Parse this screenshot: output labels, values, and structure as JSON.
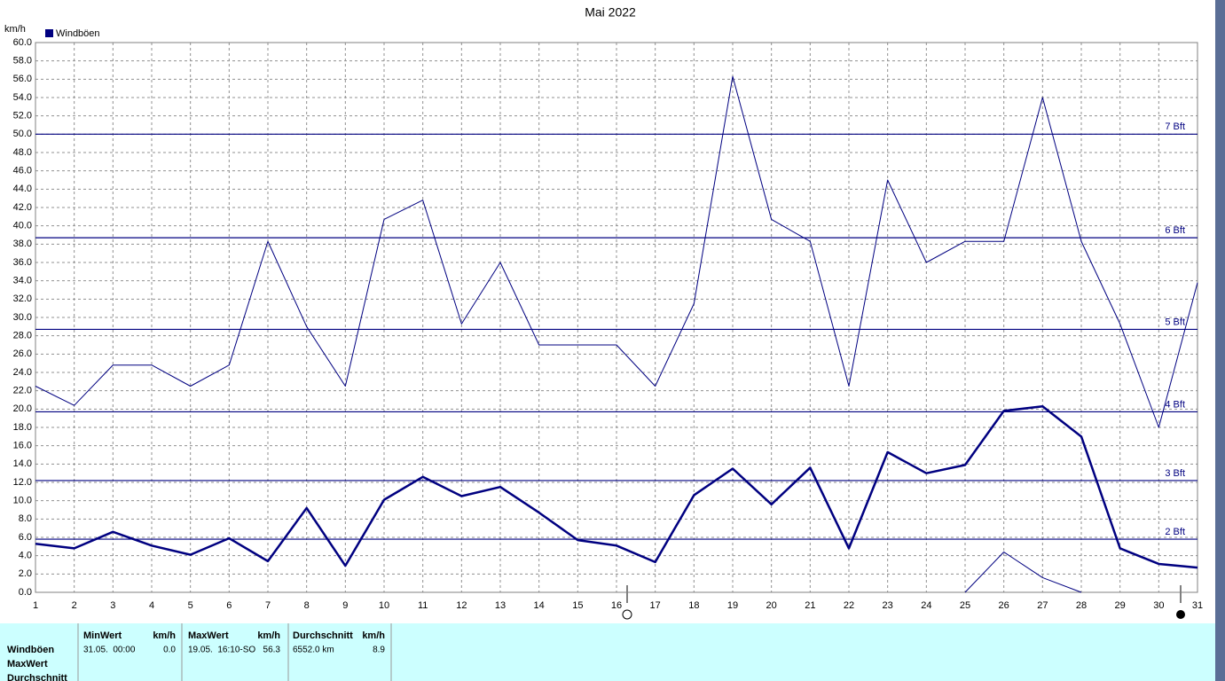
{
  "chart_data": {
    "type": "line",
    "title": "Mai 2022",
    "y_label": "km/h",
    "legend": {
      "label": "Windböen",
      "color": "#000080"
    },
    "x": [
      1,
      2,
      3,
      4,
      5,
      6,
      7,
      8,
      9,
      10,
      11,
      12,
      13,
      14,
      15,
      16,
      17,
      18,
      19,
      20,
      21,
      22,
      23,
      24,
      25,
      26,
      27,
      28,
      29,
      30,
      31
    ],
    "xlim": [
      1,
      31
    ],
    "xticks": [
      1,
      2,
      3,
      4,
      5,
      6,
      7,
      8,
      9,
      10,
      11,
      12,
      13,
      14,
      15,
      16,
      17,
      18,
      19,
      20,
      21,
      22,
      23,
      24,
      25,
      26,
      27,
      28,
      29,
      30,
      31
    ],
    "ylim": [
      0,
      60
    ],
    "yticks": [
      {
        "value": 0,
        "label": "0.0"
      },
      {
        "value": 2,
        "label": "2.0"
      },
      {
        "value": 4,
        "label": "4.0"
      },
      {
        "value": 6,
        "label": "6.0"
      },
      {
        "value": 8,
        "label": "8.0"
      },
      {
        "value": 10,
        "label": "10.0"
      },
      {
        "value": 12,
        "label": "12.0"
      },
      {
        "value": 14,
        "label": "14.0"
      },
      {
        "value": 16,
        "label": "16.0"
      },
      {
        "value": 18,
        "label": "18.0"
      },
      {
        "value": 20,
        "label": "20.0"
      },
      {
        "value": 22,
        "label": "22.0"
      },
      {
        "value": 24,
        "label": "24.0"
      },
      {
        "value": 26,
        "label": "26.0"
      },
      {
        "value": 28,
        "label": "28.0"
      },
      {
        "value": 30,
        "label": "30.0"
      },
      {
        "value": 32,
        "label": "32.0"
      },
      {
        "value": 34,
        "label": "34.0"
      },
      {
        "value": 36,
        "label": "36.0"
      },
      {
        "value": 38,
        "label": "38.0"
      },
      {
        "value": 40,
        "label": "40.0"
      },
      {
        "value": 42,
        "label": "42.0"
      },
      {
        "value": 44,
        "label": "44.0"
      },
      {
        "value": 46,
        "label": "46.0"
      },
      {
        "value": 48,
        "label": "48.0"
      },
      {
        "value": 50,
        "label": "50.0"
      },
      {
        "value": 52,
        "label": "52.0"
      },
      {
        "value": 54,
        "label": "54.0"
      },
      {
        "value": 56,
        "label": "56.0"
      },
      {
        "value": 58,
        "label": "58.0"
      },
      {
        "value": 60,
        "label": "60.0"
      }
    ],
    "grid": true,
    "reference_lines": [
      {
        "value": 5.8,
        "label": "2 Bft"
      },
      {
        "value": 12.2,
        "label": "3 Bft"
      },
      {
        "value": 19.7,
        "label": "4 Bft"
      },
      {
        "value": 28.7,
        "label": "5 Bft"
      },
      {
        "value": 38.7,
        "label": "6 Bft"
      },
      {
        "value": 50.0,
        "label": "7 Bft"
      }
    ],
    "series": [
      {
        "color": "#000080",
        "line_width": 1,
        "values": [
          22.5,
          20.4,
          24.8,
          24.8,
          22.5,
          24.8,
          38.3,
          29.0,
          22.5,
          40.7,
          42.8,
          29.3,
          36.0,
          27.0,
          27.0,
          27.0,
          22.5,
          31.5,
          56.3,
          40.7,
          38.3,
          22.5,
          45.0,
          36.0,
          38.3,
          38.3,
          54.0,
          38.3,
          29.3,
          18.0,
          33.8
        ]
      },
      {
        "color": "#000080",
        "line_width": 2.5,
        "values": [
          5.3,
          4.8,
          6.6,
          5.1,
          4.1,
          5.9,
          3.4,
          9.2,
          2.9,
          10.1,
          12.6,
          10.5,
          11.5,
          8.7,
          5.7,
          5.1,
          3.3,
          10.6,
          13.5,
          9.6,
          13.6,
          4.8,
          15.3,
          13.0,
          13.9,
          19.8,
          20.3,
          17.0,
          4.8,
          3.1,
          2.7
        ]
      },
      {
        "color": "#000080",
        "line_width": 1,
        "values": [
          null,
          null,
          null,
          null,
          null,
          null,
          null,
          null,
          null,
          null,
          null,
          null,
          null,
          null,
          null,
          null,
          null,
          null,
          null,
          null,
          null,
          null,
          null,
          null,
          0.0,
          4.4,
          1.6,
          0.0,
          null,
          null,
          null
        ]
      }
    ]
  },
  "stats": {
    "headers": [
      "MinWert",
      "km/h",
      "MaxWert",
      "km/h",
      "Durchschnitt",
      "km/h"
    ],
    "row_labels": [
      "Windböen",
      "MaxWert",
      "Durchschnitt"
    ],
    "rows": [
      [
        "31.05.  00:00",
        "0.0",
        "19.05.  16:10-SO",
        "56.3",
        "6552.0 km",
        "8.9"
      ]
    ]
  }
}
